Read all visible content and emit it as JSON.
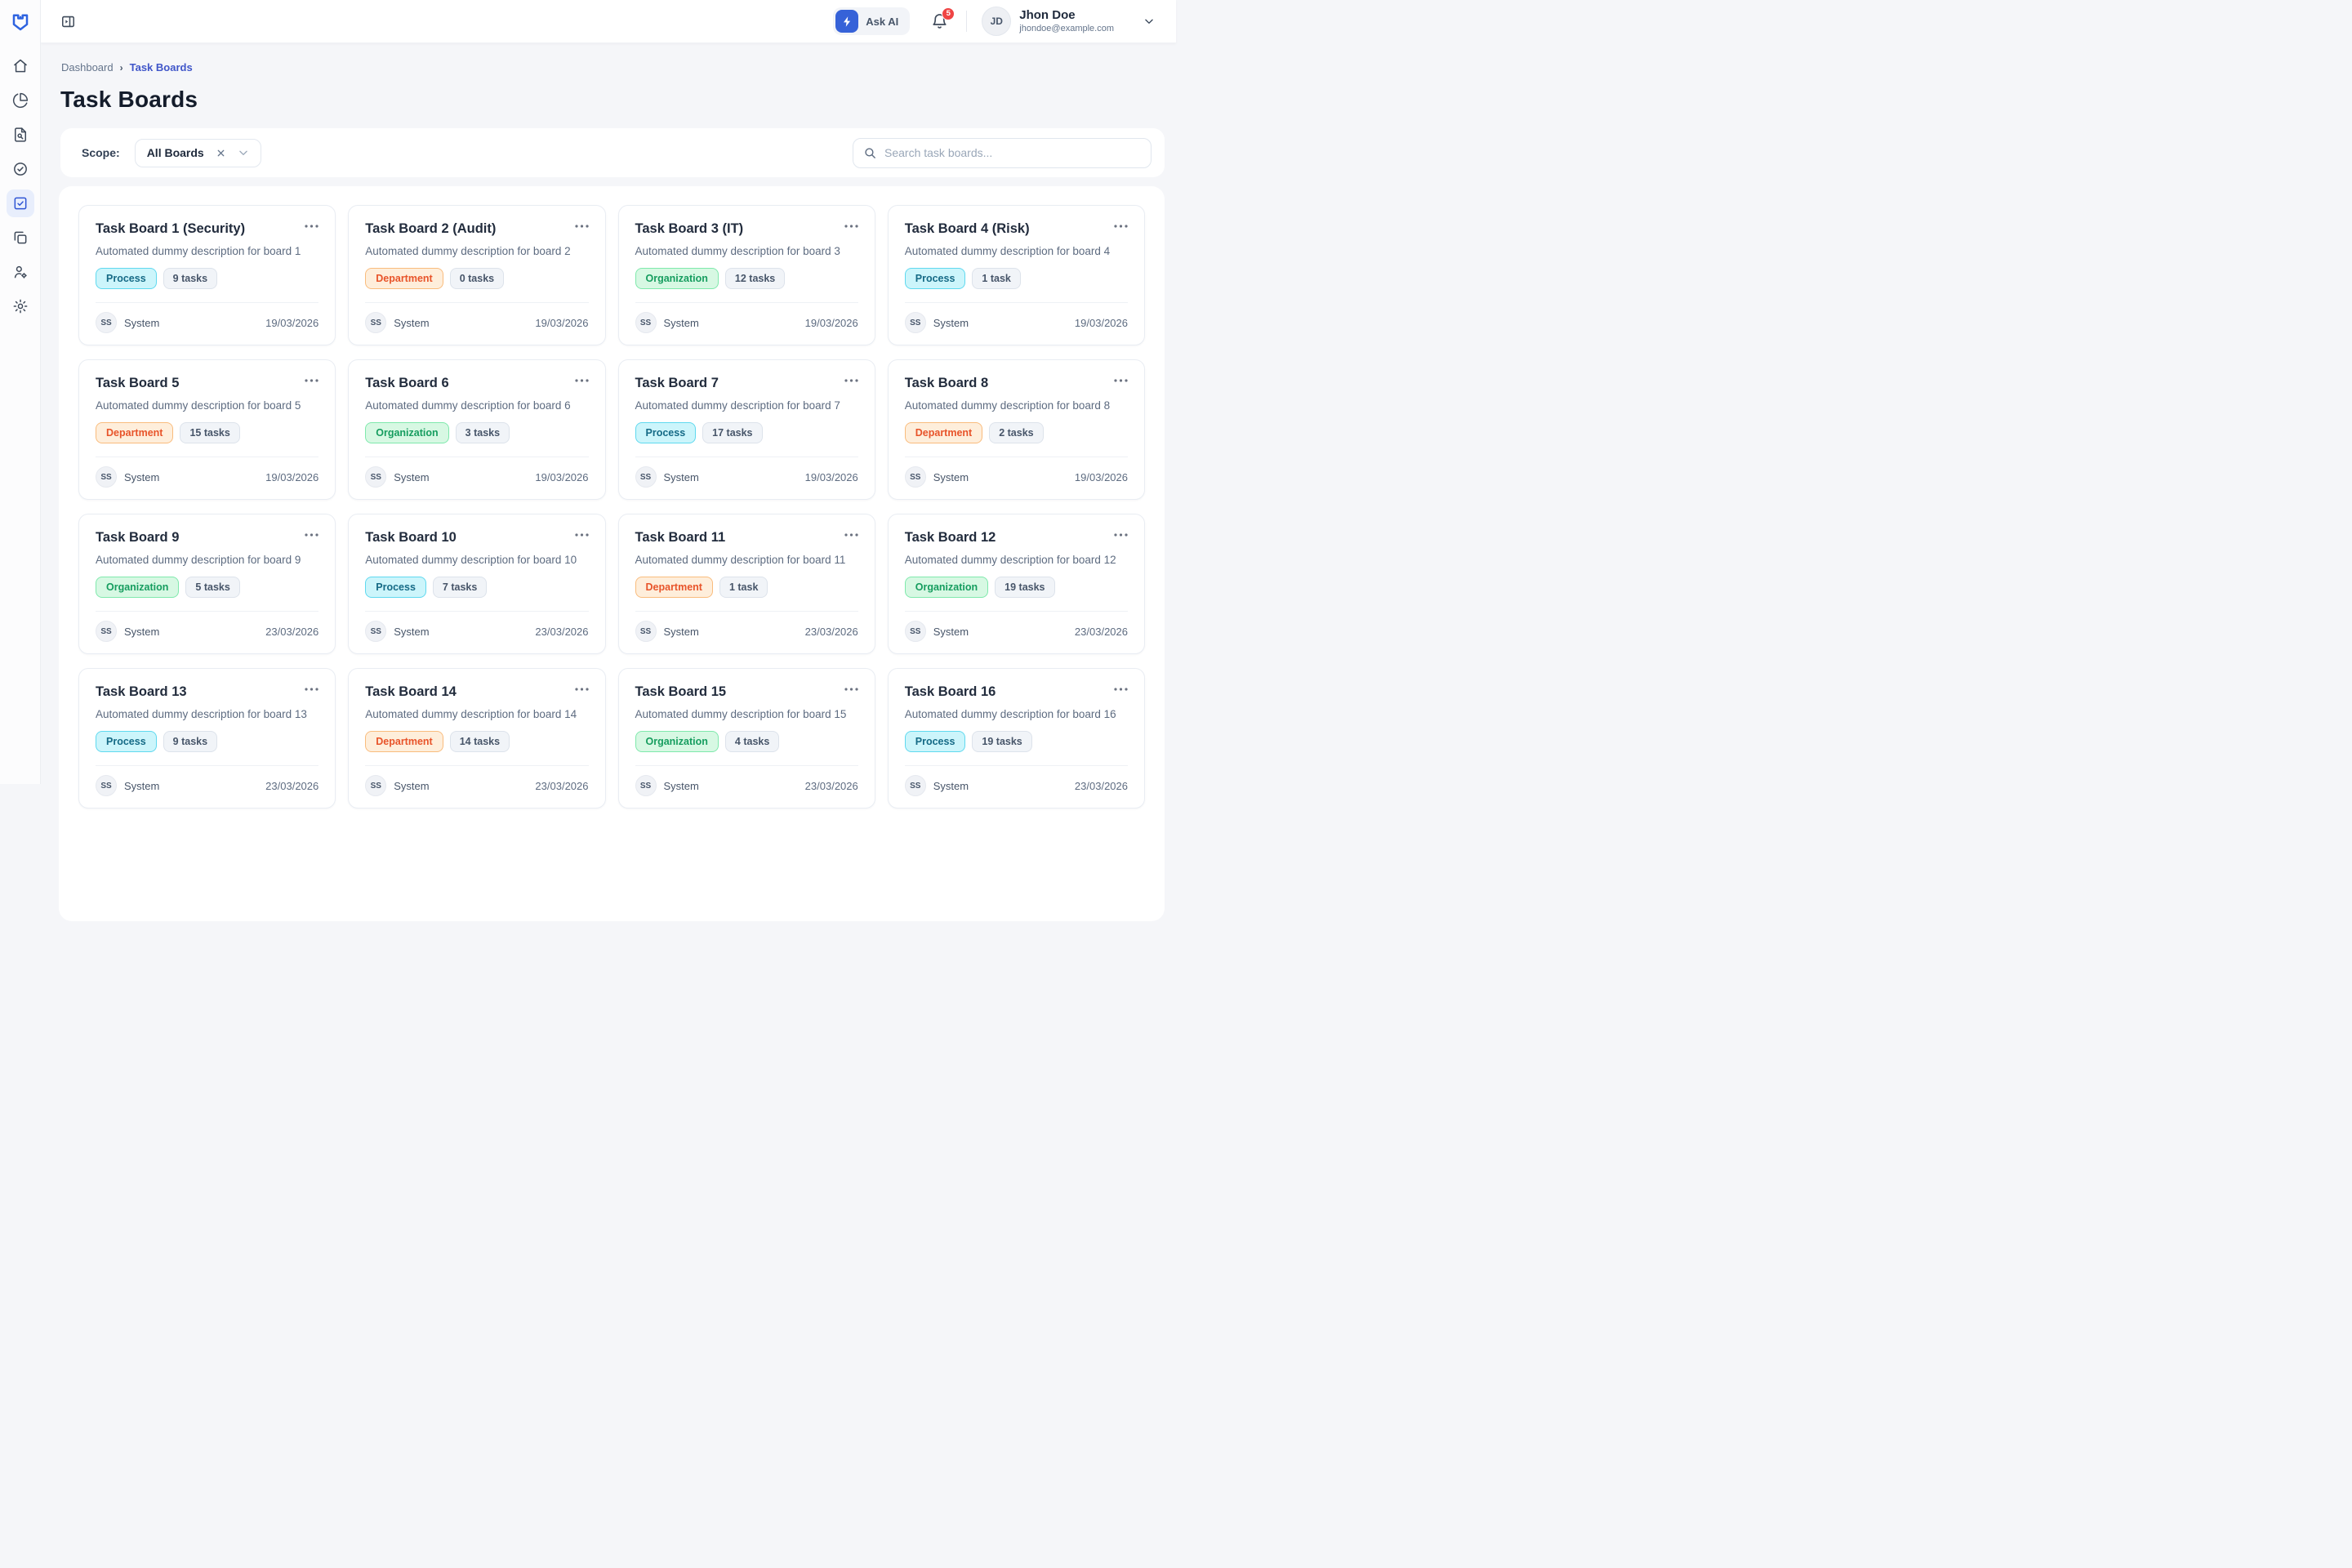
{
  "header": {
    "ask_ai_label": "Ask AI",
    "notification_count": "5",
    "user": {
      "initials": "JD",
      "name": "Jhon Doe",
      "email": "jhondoe@example.com"
    }
  },
  "sidebar": {
    "items": [
      {
        "id": "home",
        "icon": "home-icon",
        "active": false
      },
      {
        "id": "analytics",
        "icon": "pie-chart-icon",
        "active": false
      },
      {
        "id": "documents",
        "icon": "file-search-icon",
        "active": false
      },
      {
        "id": "approvals",
        "icon": "check-circle-icon",
        "active": false
      },
      {
        "id": "task-boards",
        "icon": "task-checkbox-icon",
        "active": true
      },
      {
        "id": "boards",
        "icon": "folders-icon",
        "active": false
      },
      {
        "id": "users",
        "icon": "user-settings-icon",
        "active": false
      },
      {
        "id": "settings",
        "icon": "gear-icon",
        "active": false
      }
    ]
  },
  "breadcrumb": {
    "root": "Dashboard",
    "current": "Task Boards"
  },
  "page": {
    "title": "Task Boards"
  },
  "filter": {
    "scope_label": "Scope:",
    "scope_value": "All Boards"
  },
  "search": {
    "placeholder": "Search task boards..."
  },
  "category_colors": {
    "Process": {
      "bg": "#ccf5fb",
      "border": "#5fd9ef",
      "text": "#156a86"
    },
    "Department": {
      "bg": "#feeedb",
      "border": "#f9bc7d",
      "text": "#e8542a"
    },
    "Organization": {
      "bg": "#d7f8e3",
      "border": "#7fe9ac",
      "text": "#169d5f"
    }
  },
  "boards": [
    {
      "title": "Task Board 1 (Security)",
      "description": "Automated dummy description for board 1",
      "category": "Process",
      "tasks": "9 tasks",
      "owner_initials": "SS",
      "owner": "System",
      "date": "19/03/2026"
    },
    {
      "title": "Task Board 2 (Audit)",
      "description": "Automated dummy description for board 2",
      "category": "Department",
      "tasks": "0 tasks",
      "owner_initials": "SS",
      "owner": "System",
      "date": "19/03/2026"
    },
    {
      "title": "Task Board 3 (IT)",
      "description": "Automated dummy description for board 3",
      "category": "Organization",
      "tasks": "12 tasks",
      "owner_initials": "SS",
      "owner": "System",
      "date": "19/03/2026"
    },
    {
      "title": "Task Board 4 (Risk)",
      "description": "Automated dummy description for board 4",
      "category": "Process",
      "tasks": "1 task",
      "owner_initials": "SS",
      "owner": "System",
      "date": "19/03/2026"
    },
    {
      "title": "Task Board 5",
      "description": "Automated dummy description for board 5",
      "category": "Department",
      "tasks": "15 tasks",
      "owner_initials": "SS",
      "owner": "System",
      "date": "19/03/2026"
    },
    {
      "title": "Task Board 6",
      "description": "Automated dummy description for board 6",
      "category": "Organization",
      "tasks": "3 tasks",
      "owner_initials": "SS",
      "owner": "System",
      "date": "19/03/2026"
    },
    {
      "title": "Task Board 7",
      "description": "Automated dummy description for board 7",
      "category": "Process",
      "tasks": "17 tasks",
      "owner_initials": "SS",
      "owner": "System",
      "date": "19/03/2026"
    },
    {
      "title": "Task Board 8",
      "description": "Automated dummy description for board 8",
      "category": "Department",
      "tasks": "2 tasks",
      "owner_initials": "SS",
      "owner": "System",
      "date": "19/03/2026"
    },
    {
      "title": "Task Board 9",
      "description": "Automated dummy description for board 9",
      "category": "Organization",
      "tasks": "5 tasks",
      "owner_initials": "SS",
      "owner": "System",
      "date": "23/03/2026"
    },
    {
      "title": "Task Board 10",
      "description": "Automated dummy description for board 10",
      "category": "Process",
      "tasks": "7 tasks",
      "owner_initials": "SS",
      "owner": "System",
      "date": "23/03/2026"
    },
    {
      "title": "Task Board 11",
      "description": "Automated dummy description for board 11",
      "category": "Department",
      "tasks": "1 task",
      "owner_initials": "SS",
      "owner": "System",
      "date": "23/03/2026"
    },
    {
      "title": "Task Board 12",
      "description": "Automated dummy description for board 12",
      "category": "Organization",
      "tasks": "19 tasks",
      "owner_initials": "SS",
      "owner": "System",
      "date": "23/03/2026"
    },
    {
      "title": "Task Board 13",
      "description": "Automated dummy description for board 13",
      "category": "Process",
      "tasks": "9 tasks",
      "owner_initials": "SS",
      "owner": "System",
      "date": "23/03/2026"
    },
    {
      "title": "Task Board 14",
      "description": "Automated dummy description for board 14",
      "category": "Department",
      "tasks": "14 tasks",
      "owner_initials": "SS",
      "owner": "System",
      "date": "23/03/2026"
    },
    {
      "title": "Task Board 15",
      "description": "Automated dummy description for board 15",
      "category": "Organization",
      "tasks": "4 tasks",
      "owner_initials": "SS",
      "owner": "System",
      "date": "23/03/2026"
    },
    {
      "title": "Task Board 16",
      "description": "Automated dummy description for board 16",
      "category": "Process",
      "tasks": "19 tasks",
      "owner_initials": "SS",
      "owner": "System",
      "date": "23/03/2026"
    }
  ]
}
